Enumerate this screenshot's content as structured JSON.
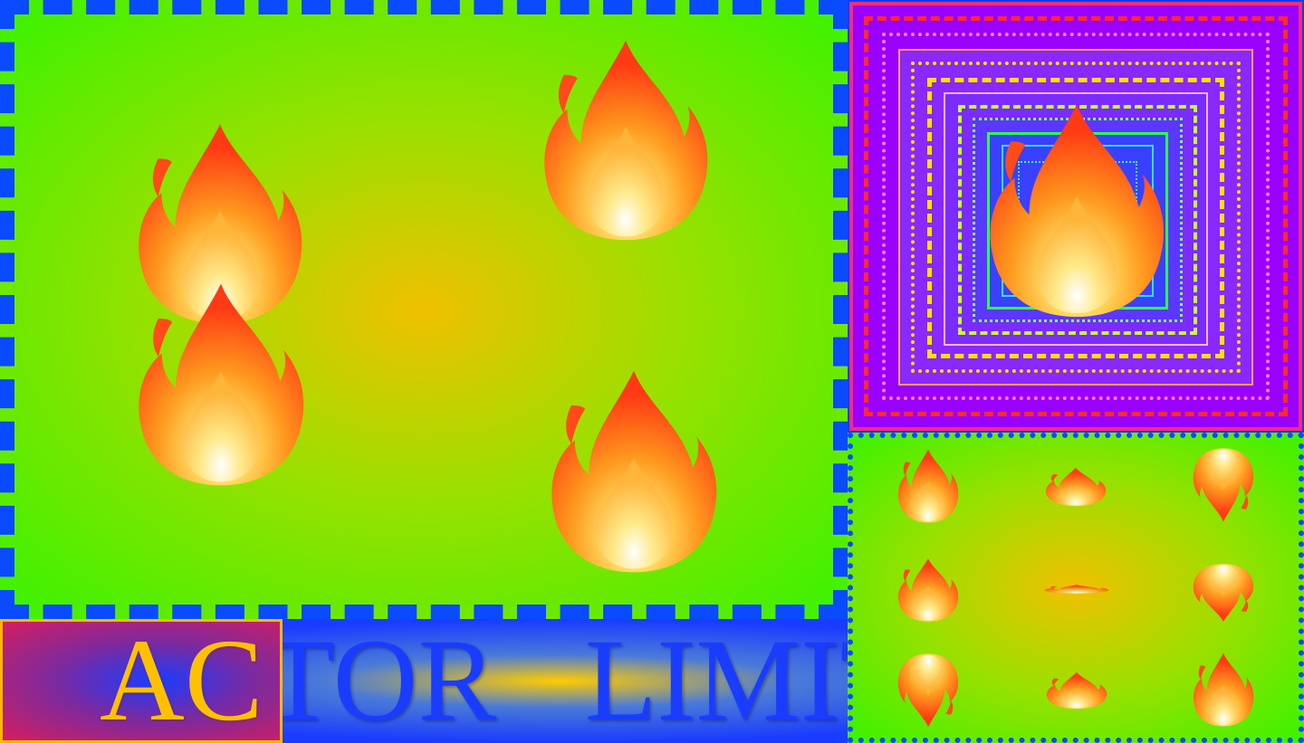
{
  "banner": {
    "text": "ACTOR   LIMIT",
    "highlight_text": "AC"
  },
  "icons": {
    "flame": "fire-icon"
  },
  "colors": {
    "blue": "#0a4bff",
    "green": "#3ef200",
    "gold": "#ffc000",
    "purple": "#9a00ff",
    "flame_red": "#ff3a14",
    "flame_orange": "#ff8a1a",
    "flame_yellow": "#ffe066"
  }
}
